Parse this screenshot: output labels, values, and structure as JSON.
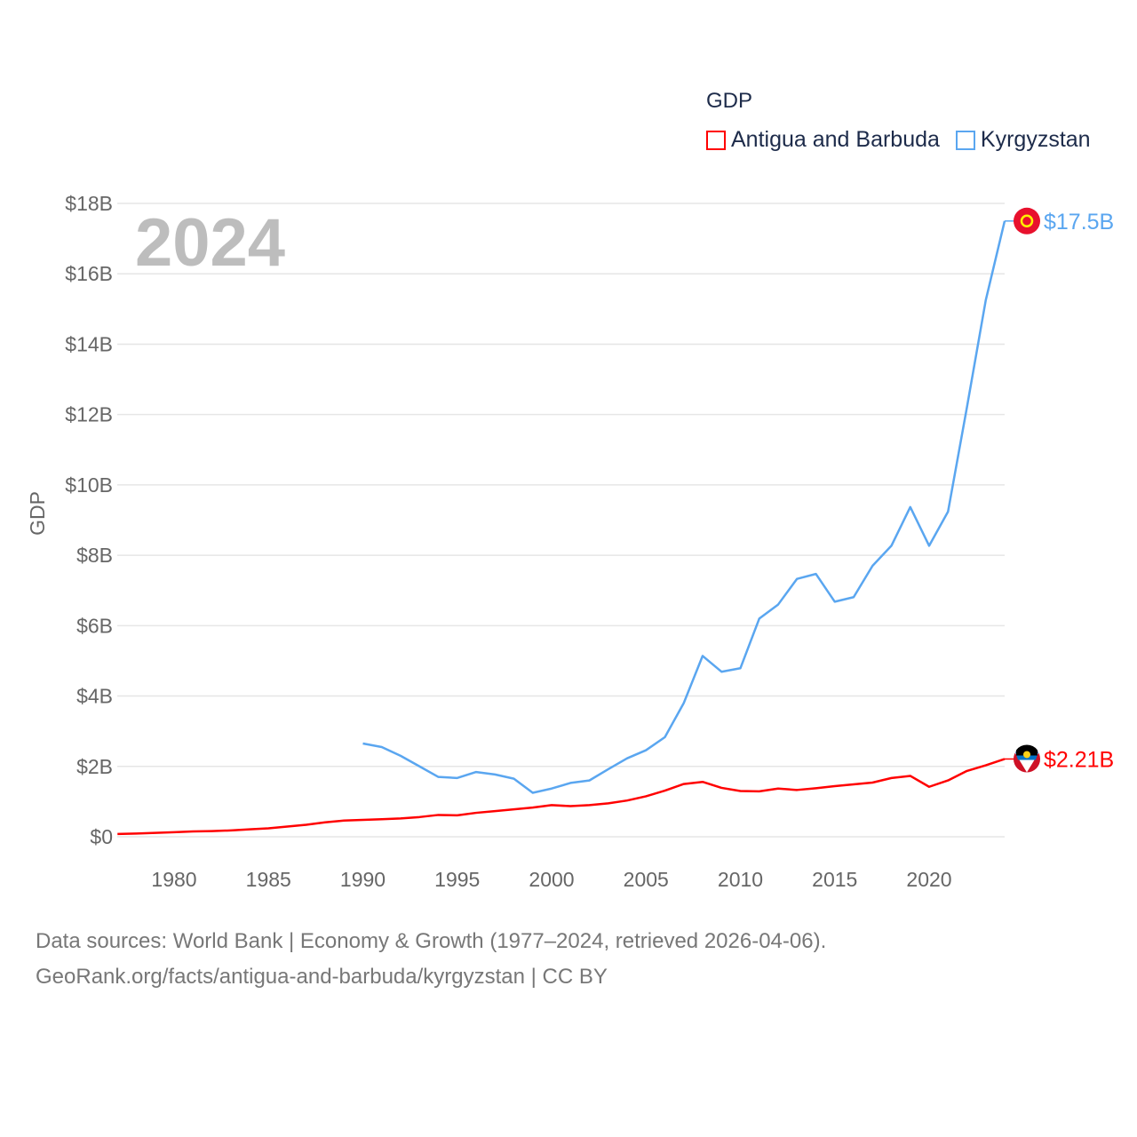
{
  "chart_data": {
    "type": "line",
    "title": "GDP",
    "ylabel": "GDP",
    "xlabel": "",
    "xlim": [
      1977,
      2024
    ],
    "ylim": [
      0,
      18
    ],
    "x_ticks": [
      1980,
      1985,
      1990,
      1995,
      2000,
      2005,
      2010,
      2015,
      2020
    ],
    "y_ticks": [
      0,
      2,
      4,
      6,
      8,
      10,
      12,
      14,
      16,
      18
    ],
    "y_tick_labels": [
      "$0",
      "$2B",
      "$4B",
      "$6B",
      "$8B",
      "$10B",
      "$12B",
      "$14B",
      "$16B",
      "$18B"
    ],
    "grid": true,
    "legend_placement": "top-right",
    "year_label": "2024",
    "series": [
      {
        "name": "Antigua and Barbuda",
        "color": "#ff0000",
        "end_label": "$2.21B",
        "x": [
          1977,
          1978,
          1979,
          1980,
          1981,
          1982,
          1983,
          1984,
          1985,
          1986,
          1987,
          1988,
          1989,
          1990,
          1991,
          1992,
          1993,
          1994,
          1995,
          1996,
          1997,
          1998,
          1999,
          2000,
          2001,
          2002,
          2003,
          2004,
          2005,
          2006,
          2007,
          2008,
          2009,
          2010,
          2011,
          2012,
          2013,
          2014,
          2015,
          2016,
          2017,
          2018,
          2019,
          2020,
          2021,
          2022,
          2023,
          2024
        ],
        "values": [
          0.08,
          0.09,
          0.11,
          0.13,
          0.15,
          0.16,
          0.18,
          0.21,
          0.24,
          0.29,
          0.34,
          0.41,
          0.46,
          0.48,
          0.5,
          0.52,
          0.56,
          0.62,
          0.61,
          0.68,
          0.73,
          0.78,
          0.83,
          0.9,
          0.87,
          0.9,
          0.95,
          1.03,
          1.15,
          1.31,
          1.5,
          1.56,
          1.39,
          1.3,
          1.29,
          1.37,
          1.33,
          1.38,
          1.44,
          1.49,
          1.54,
          1.67,
          1.73,
          1.42,
          1.6,
          1.87,
          2.03,
          2.21
        ]
      },
      {
        "name": "Kyrgyzstan",
        "color": "#5aa6f0",
        "end_label": "$17.5B",
        "x": [
          1990,
          1991,
          1992,
          1993,
          1994,
          1995,
          1996,
          1997,
          1998,
          1999,
          2000,
          2001,
          2002,
          2003,
          2004,
          2005,
          2006,
          2007,
          2008,
          2009,
          2010,
          2011,
          2012,
          2013,
          2014,
          2015,
          2016,
          2017,
          2018,
          2019,
          2020,
          2021,
          2022,
          2023,
          2024
        ],
        "values": [
          2.65,
          2.55,
          2.3,
          2.0,
          1.7,
          1.67,
          1.84,
          1.77,
          1.65,
          1.25,
          1.37,
          1.53,
          1.6,
          1.92,
          2.23,
          2.46,
          2.83,
          3.8,
          5.14,
          4.69,
          4.79,
          6.2,
          6.6,
          7.33,
          7.47,
          6.68,
          6.81,
          7.7,
          8.27,
          9.37,
          8.27,
          9.24,
          12.2,
          15.25,
          17.5
        ]
      }
    ]
  },
  "footer": {
    "line1": "Data sources: World Bank | Economy & Growth (1977–2024, retrieved 2026-04-06).",
    "line2": "GeoRank.org/facts/antigua-and-barbuda/kyrgyzstan | CC BY"
  }
}
